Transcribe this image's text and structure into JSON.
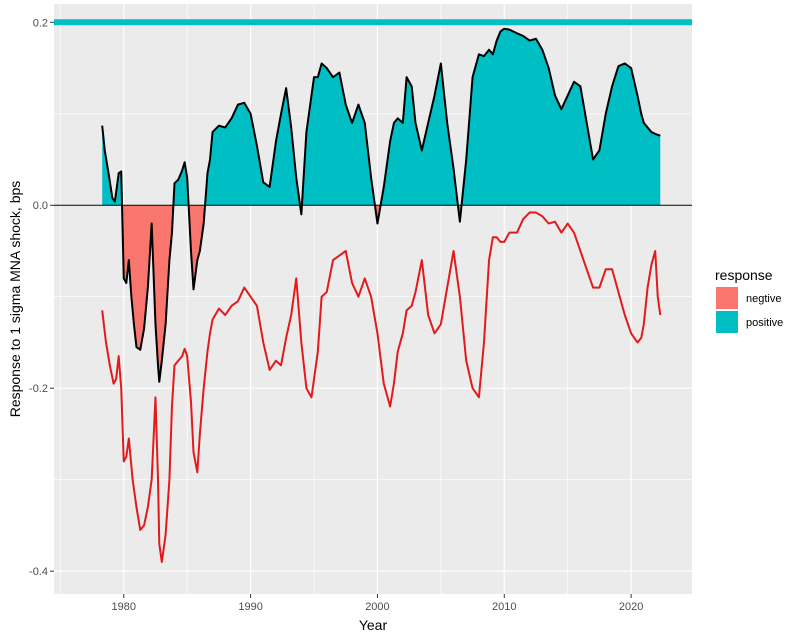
{
  "chart_data": {
    "type": "area",
    "title": "",
    "xlabel": "Year",
    "ylabel": "Response to 1 sigma MNA shock, bps",
    "xlim": [
      1974.5,
      2024.8
    ],
    "ylim": [
      -0.425,
      0.22
    ],
    "x_ticks": [
      1980,
      1990,
      2000,
      2010,
      2020
    ],
    "x_tick_labels": [
      "1980",
      "1990",
      "2000",
      "2010",
      "2020"
    ],
    "y_ticks": [
      -0.4,
      -0.2,
      0.0,
      0.2
    ],
    "y_tick_labels": [
      "-0.4",
      "-0.2",
      "0.0",
      "0.2"
    ],
    "grid": true,
    "legend": {
      "title": "response",
      "position": "right",
      "entries": [
        {
          "label": "negtive",
          "color": "#F8766D"
        },
        {
          "label": "positive",
          "color": "#00BFC4"
        }
      ]
    },
    "reference_lines": [
      {
        "y": 0.0,
        "color": "#000000"
      },
      {
        "y": 0.2,
        "color": "#00BFC4"
      }
    ],
    "series": [
      {
        "color": "#000000",
        "fill": "sign",
        "x": [
          1978.3,
          1978.5,
          1978.8,
          1979.1,
          1979.3,
          1979.6,
          1979.8,
          1980.0,
          1980.2,
          1980.4,
          1980.6,
          1980.8,
          1981.0,
          1981.3,
          1981.6,
          1981.9,
          1982.2,
          1982.5,
          1982.7,
          1982.8,
          1983.0,
          1983.3,
          1983.6,
          1983.8,
          1984.0,
          1984.3,
          1984.6,
          1984.8,
          1985.0,
          1985.3,
          1985.5,
          1985.8,
          1986.0,
          1986.3,
          1986.6,
          1986.8,
          1987.0,
          1987.5,
          1988.0,
          1988.5,
          1989.0,
          1989.5,
          1990.0,
          1990.5,
          1991.0,
          1991.5,
          1992.0,
          1992.4,
          1992.8,
          1993.2,
          1993.6,
          1994.0,
          1994.4,
          1994.8,
          1995.0,
          1995.3,
          1995.6,
          1996.0,
          1996.5,
          1997.0,
          1997.5,
          1998.0,
          1998.5,
          1999.0,
          1999.5,
          2000.0,
          2000.5,
          2001.0,
          2001.3,
          2001.6,
          2002.0,
          2002.3,
          2002.7,
          2003.0,
          2003.5,
          2004.0,
          2004.5,
          2005.0,
          2005.5,
          2006.0,
          2006.5,
          2007.0,
          2007.5,
          2008.0,
          2008.4,
          2008.8,
          2009.1,
          2009.4,
          2009.7,
          2010.0,
          2010.4,
          2011.0,
          2011.5,
          2012.0,
          2012.5,
          2013.0,
          2013.5,
          2014.0,
          2014.5,
          2015.0,
          2015.5,
          2016.0,
          2016.5,
          2017.0,
          2017.5,
          2018.0,
          2018.5,
          2019.0,
          2019.5,
          2020.0,
          2020.5,
          2020.8,
          2021.0,
          2021.3,
          2021.6,
          2021.9,
          2022.1,
          2022.3
        ],
        "y": [
          0.087,
          0.06,
          0.035,
          0.008,
          0.004,
          0.035,
          0.037,
          -0.08,
          -0.085,
          -0.06,
          -0.1,
          -0.13,
          -0.155,
          -0.158,
          -0.135,
          -0.09,
          -0.02,
          -0.13,
          -0.175,
          -0.193,
          -0.17,
          -0.13,
          -0.06,
          -0.03,
          0.024,
          0.028,
          0.038,
          0.047,
          0.03,
          -0.05,
          -0.092,
          -0.06,
          -0.05,
          -0.02,
          0.035,
          0.05,
          0.08,
          0.087,
          0.085,
          0.095,
          0.11,
          0.112,
          0.1,
          0.065,
          0.025,
          0.02,
          0.07,
          0.1,
          0.128,
          0.085,
          0.03,
          -0.01,
          0.08,
          0.12,
          0.14,
          0.14,
          0.155,
          0.15,
          0.14,
          0.145,
          0.11,
          0.09,
          0.11,
          0.09,
          0.03,
          -0.02,
          0.02,
          0.07,
          0.09,
          0.095,
          0.09,
          0.14,
          0.13,
          0.09,
          0.06,
          0.09,
          0.12,
          0.155,
          0.09,
          0.04,
          -0.018,
          0.05,
          0.14,
          0.165,
          0.163,
          0.17,
          0.165,
          0.18,
          0.19,
          0.193,
          0.192,
          0.188,
          0.185,
          0.18,
          0.182,
          0.17,
          0.15,
          0.12,
          0.105,
          0.12,
          0.135,
          0.13,
          0.09,
          0.05,
          0.06,
          0.1,
          0.13,
          0.152,
          0.155,
          0.15,
          0.12,
          0.1,
          0.09,
          0.085,
          0.08,
          0.078,
          0.077,
          0.076
        ]
      },
      {
        "color": "#E31A1C",
        "x": [
          1978.3,
          1978.6,
          1978.9,
          1979.2,
          1979.4,
          1979.6,
          1979.8,
          1980.0,
          1980.2,
          1980.4,
          1980.7,
          1981.0,
          1981.3,
          1981.6,
          1981.9,
          1982.2,
          1982.5,
          1982.7,
          1982.8,
          1983.0,
          1983.3,
          1983.6,
          1983.8,
          1984.0,
          1984.3,
          1984.6,
          1984.8,
          1985.0,
          1985.3,
          1985.5,
          1985.8,
          1986.0,
          1986.3,
          1986.6,
          1986.8,
          1987.0,
          1987.5,
          1988.0,
          1988.5,
          1989.0,
          1989.5,
          1990.0,
          1990.5,
          1991.0,
          1991.5,
          1992.0,
          1992.4,
          1992.8,
          1993.2,
          1993.6,
          1994.0,
          1994.4,
          1994.8,
          1995.0,
          1995.3,
          1995.6,
          1996.0,
          1996.5,
          1997.0,
          1997.5,
          1998.0,
          1998.5,
          1999.0,
          1999.5,
          2000.0,
          2000.5,
          2001.0,
          2001.3,
          2001.6,
          2002.0,
          2002.3,
          2002.7,
          2003.0,
          2003.5,
          2004.0,
          2004.5,
          2005.0,
          2005.5,
          2006.0,
          2006.5,
          2007.0,
          2007.5,
          2008.0,
          2008.4,
          2008.8,
          2009.1,
          2009.4,
          2009.7,
          2010.0,
          2010.4,
          2011.0,
          2011.5,
          2012.0,
          2012.5,
          2013.0,
          2013.5,
          2014.0,
          2014.5,
          2015.0,
          2015.5,
          2016.0,
          2016.5,
          2017.0,
          2017.5,
          2018.0,
          2018.5,
          2019.0,
          2019.5,
          2020.0,
          2020.5,
          2020.8,
          2021.0,
          2021.3,
          2021.6,
          2021.9,
          2022.1,
          2022.3
        ],
        "y": [
          -0.115,
          -0.15,
          -0.175,
          -0.195,
          -0.19,
          -0.165,
          -0.2,
          -0.28,
          -0.275,
          -0.255,
          -0.3,
          -0.33,
          -0.355,
          -0.35,
          -0.33,
          -0.3,
          -0.21,
          -0.3,
          -0.37,
          -0.39,
          -0.36,
          -0.3,
          -0.22,
          -0.175,
          -0.17,
          -0.165,
          -0.157,
          -0.165,
          -0.215,
          -0.27,
          -0.292,
          -0.25,
          -0.2,
          -0.16,
          -0.14,
          -0.125,
          -0.113,
          -0.12,
          -0.11,
          -0.105,
          -0.09,
          -0.1,
          -0.11,
          -0.15,
          -0.18,
          -0.17,
          -0.175,
          -0.145,
          -0.12,
          -0.08,
          -0.15,
          -0.2,
          -0.21,
          -0.19,
          -0.16,
          -0.1,
          -0.095,
          -0.06,
          -0.055,
          -0.05,
          -0.085,
          -0.1,
          -0.08,
          -0.1,
          -0.14,
          -0.195,
          -0.22,
          -0.195,
          -0.16,
          -0.14,
          -0.115,
          -0.11,
          -0.095,
          -0.06,
          -0.12,
          -0.14,
          -0.13,
          -0.09,
          -0.05,
          -0.1,
          -0.17,
          -0.2,
          -0.21,
          -0.15,
          -0.06,
          -0.035,
          -0.035,
          -0.04,
          -0.04,
          -0.03,
          -0.03,
          -0.015,
          -0.008,
          -0.008,
          -0.012,
          -0.02,
          -0.018,
          -0.03,
          -0.02,
          -0.03,
          -0.05,
          -0.07,
          -0.09,
          -0.09,
          -0.07,
          -0.07,
          -0.095,
          -0.12,
          -0.14,
          -0.15,
          -0.145,
          -0.13,
          -0.09,
          -0.065,
          -0.05,
          -0.1,
          -0.12
        ]
      }
    ]
  }
}
